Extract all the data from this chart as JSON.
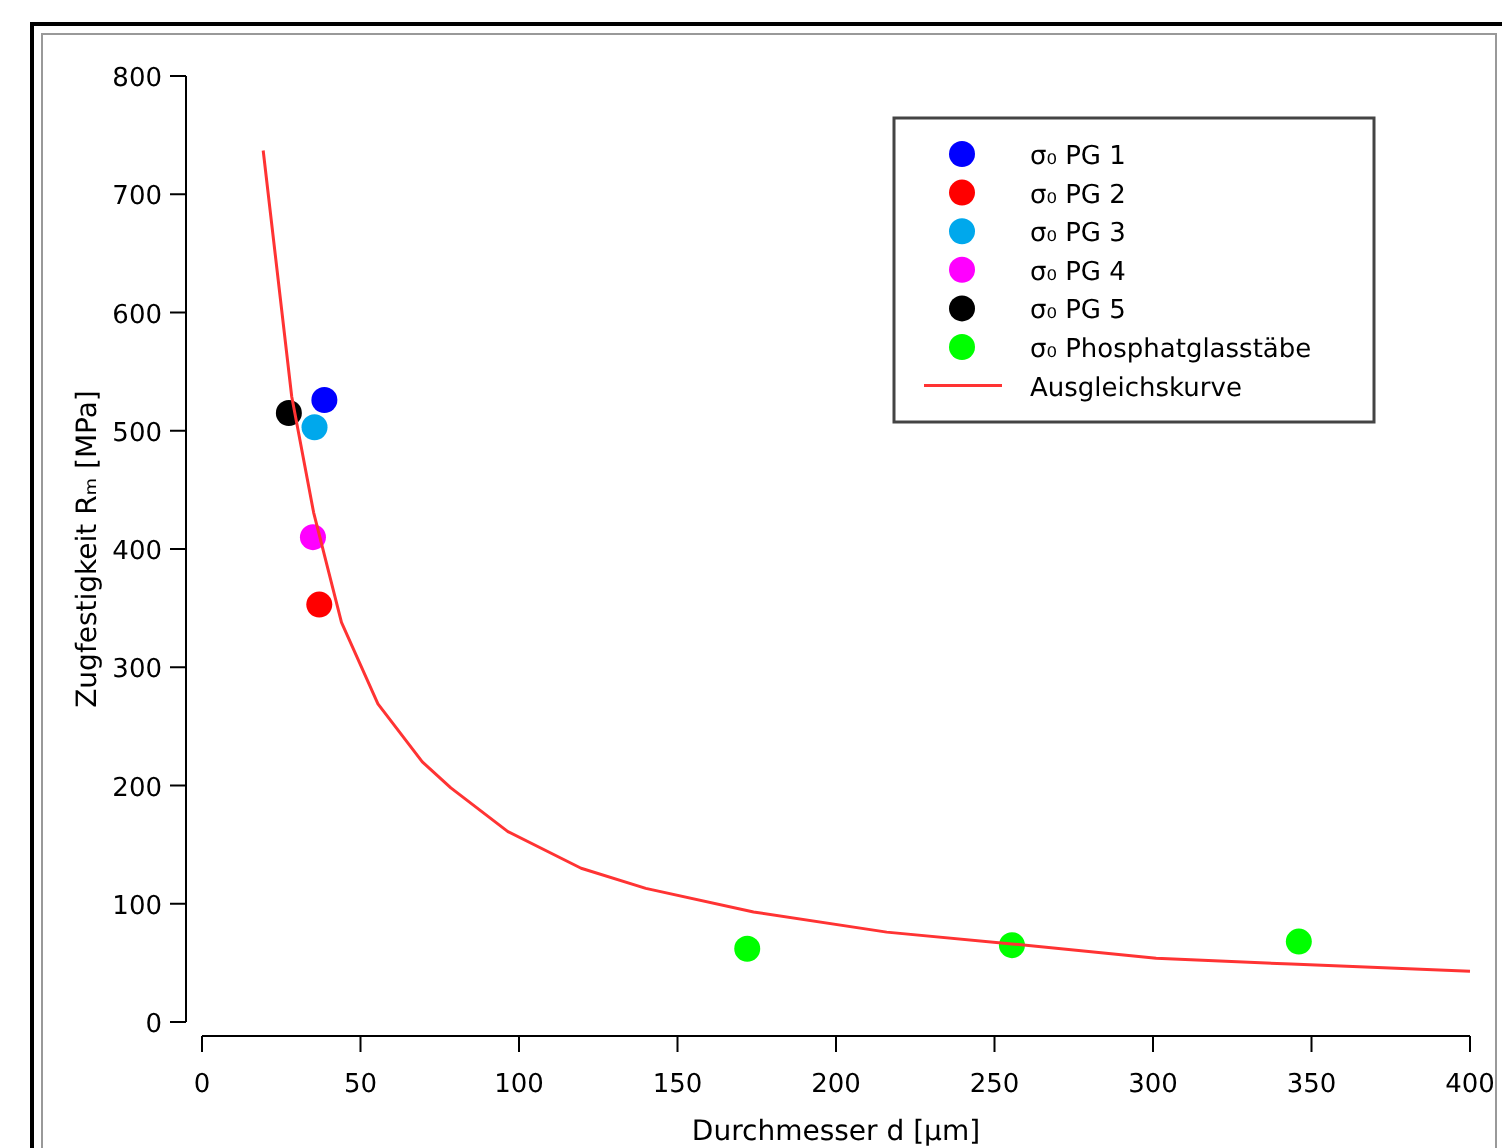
{
  "chart_data": {
    "type": "scatter",
    "xlabel": "Durchmesser d [µm]",
    "ylabel": "Zugfestigkeit Rₘ [MPa]",
    "xlim": [
      0,
      400
    ],
    "ylim": [
      0,
      800
    ],
    "xticks": [
      0,
      50,
      100,
      150,
      200,
      250,
      300,
      350,
      400
    ],
    "yticks": [
      0,
      100,
      200,
      300,
      400,
      500,
      600,
      700,
      800
    ],
    "grid": false,
    "legend": "top right",
    "marker": "circle",
    "series": [
      {
        "name": "σ₀ PG 1",
        "color": "#0000ff",
        "x": [
          38.6
        ],
        "values": [
          526
        ]
      },
      {
        "name": "σ₀ PG 2",
        "color": "#ff0000",
        "x": [
          37
        ],
        "values": [
          353
        ]
      },
      {
        "name": "σ₀ PG 3",
        "color": "#00a8ec",
        "x": [
          35.5
        ],
        "values": [
          503
        ]
      },
      {
        "name": "σ₀ PG 4",
        "color": "#ff00ff",
        "x": [
          35
        ],
        "values": [
          410
        ]
      },
      {
        "name": "σ₀ PG 5",
        "color": "#000000",
        "x": [
          27.4
        ],
        "values": [
          515
        ]
      },
      {
        "name": "σ₀ Phosphatglasstäbe",
        "color": "#00ff00",
        "x": [
          172,
          255.5,
          346
        ],
        "values": [
          62,
          65,
          68
        ]
      },
      {
        "name": "Ausgleichskurve",
        "type": "line",
        "color": "#ff3333",
        "line_style": "solid",
        "marker": "none",
        "x": [
          19.3,
          28.3,
          35.2,
          44,
          55.5,
          69.5,
          78.5,
          96.5,
          119.6,
          140,
          174,
          216,
          255.5,
          301,
          343.6,
          400
        ],
        "values": [
          737,
          529,
          431,
          338,
          269,
          220,
          198,
          161,
          130,
          113,
          93,
          76,
          66,
          54,
          49,
          43
        ]
      }
    ]
  }
}
